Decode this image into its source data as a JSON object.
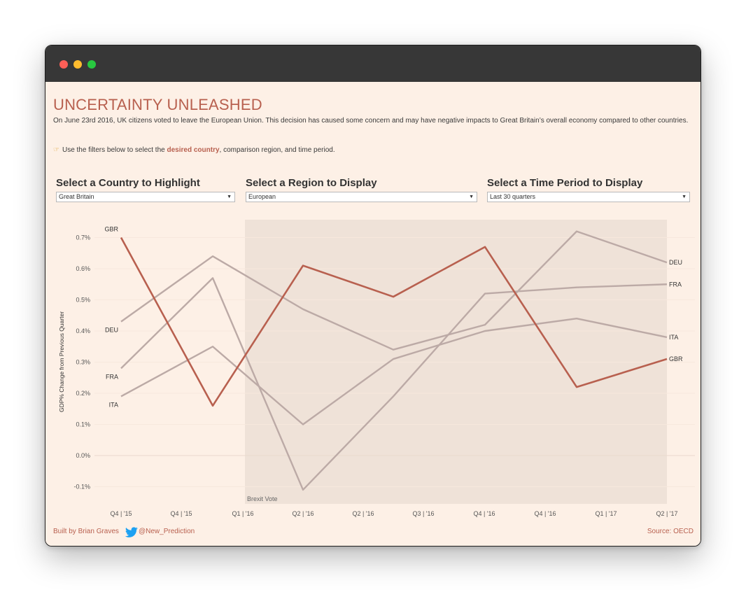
{
  "page": {
    "title": "UNCERTAINTY UNLEASHED",
    "intro": "On June 23rd 2016, UK citizens voted to leave the European Union. This decision has caused some concern and may have negative impacts to Great Britain’s overall economy compared to other countries.",
    "hint_prefix": "Use the filters below to select the ",
    "hint_accent": "desired country",
    "hint_suffix": ", comparison region, and time period.",
    "hint_icon": "pointing-hand-icon"
  },
  "filters": {
    "country": {
      "label": "Select a Country to Highlight",
      "value": "Great Britain"
    },
    "region": {
      "label": "Select a Region to Display",
      "value": "European"
    },
    "period": {
      "label": "Select a Time Period to Display",
      "value": "Last 30 quarters"
    }
  },
  "footer": {
    "credit": "Built by Brian Graves",
    "handle": "@New_Prediction",
    "source": "Source: OECD",
    "icon": "twitter-bird-icon"
  },
  "colors": {
    "accent": "#b8604f",
    "muted_line": "#bcaaa6",
    "highlight_band": "#efe2d8",
    "background": "#fdf0e6"
  },
  "chart_data": {
    "type": "line",
    "ylabel": "GDP% Change from Previous Quarter",
    "xlabel": "",
    "ylim": [
      -0.15,
      0.75
    ],
    "yticks": [
      -0.1,
      0.0,
      0.1,
      0.2,
      0.3,
      0.4,
      0.5,
      0.6,
      0.7
    ],
    "ytick_labels": [
      "-0.1%",
      "0.0%",
      "0.1%",
      "0.2%",
      "0.3%",
      "0.4%",
      "0.5%",
      "0.6%",
      "0.7%"
    ],
    "x_tick_labels": [
      "Q4 | '15",
      "Q4 | '15",
      "Q1 | '16",
      "Q2 | '16",
      "Q2 | '16",
      "Q3 | '16",
      "Q4 | '16",
      "Q4 | '16",
      "Q1 | '17",
      "Q2 | '17"
    ],
    "annotation": "Brexit Vote",
    "highlight_series": "GBR",
    "series": [
      {
        "name": "GBR",
        "values": [
          0.7,
          0.16,
          0.61,
          0.51,
          0.67,
          0.22,
          0.31
        ]
      },
      {
        "name": "DEU",
        "values": [
          0.43,
          0.64,
          0.47,
          0.34,
          0.42,
          0.72,
          0.62
        ]
      },
      {
        "name": "FRA",
        "values": [
          0.28,
          0.57,
          -0.11,
          0.19,
          0.52,
          0.54,
          0.55
        ]
      },
      {
        "name": "ITA",
        "values": [
          0.19,
          0.35,
          0.1,
          0.31,
          0.4,
          0.44,
          0.38
        ]
      }
    ]
  }
}
